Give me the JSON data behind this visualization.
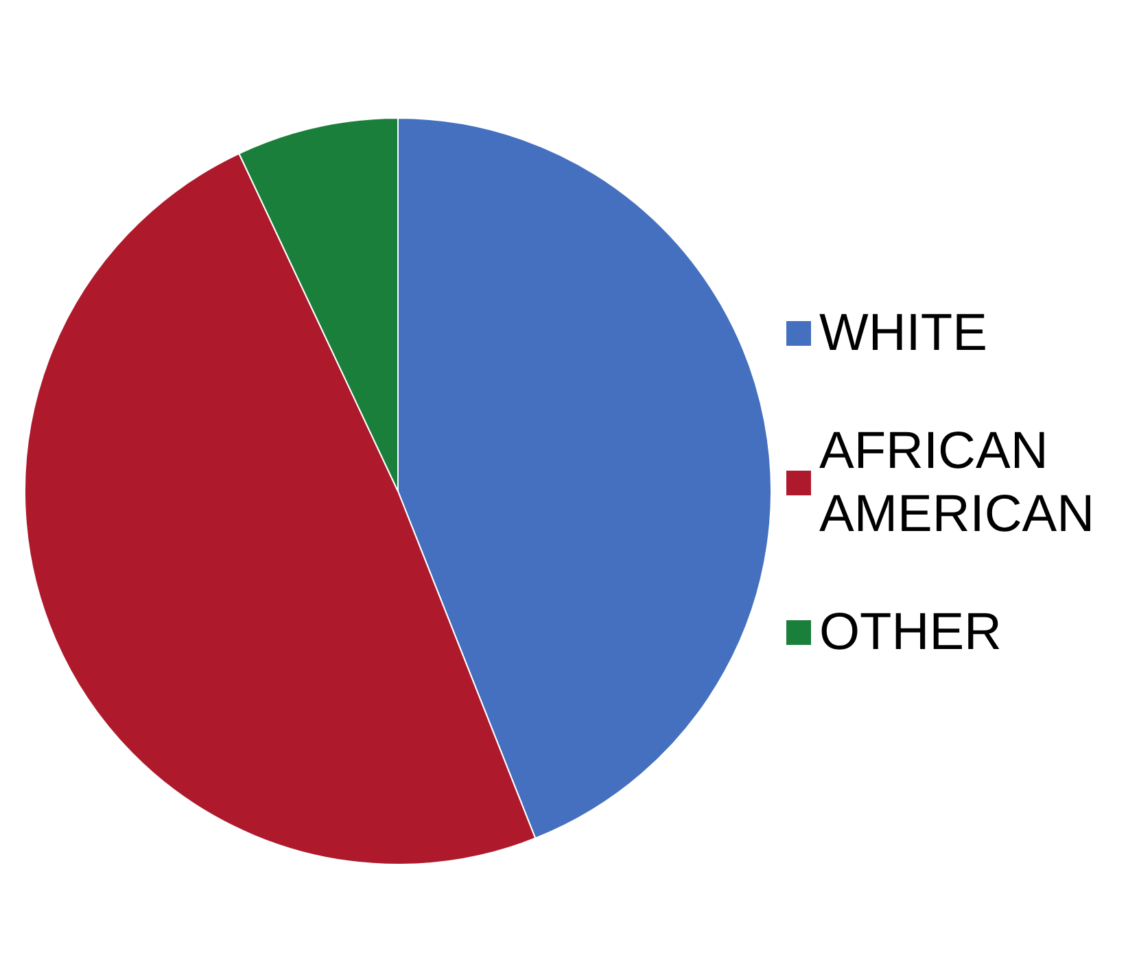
{
  "chart_data": {
    "type": "pie",
    "categories": [
      "WHITE",
      "AFRICAN AMERICAN",
      "OTHER"
    ],
    "values": [
      44,
      49,
      7
    ],
    "colors": [
      "#4470bf",
      "#ae1a2c",
      "#1a7f3a"
    ],
    "legend": "right"
  }
}
